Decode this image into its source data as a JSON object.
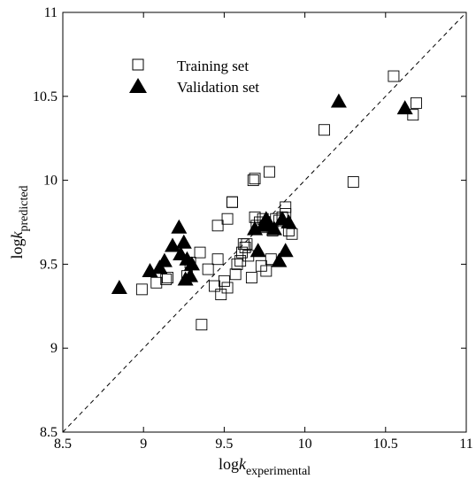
{
  "chart_data": {
    "type": "scatter",
    "xlabel": {
      "base": "log",
      "italic": "k",
      "subscript": "experimental"
    },
    "ylabel": {
      "base": "log",
      "italic": "k",
      "subscript": "predicted"
    },
    "xlim": [
      8.5,
      11
    ],
    "ylim": [
      8.5,
      11
    ],
    "xticks": [
      "8.5",
      "9",
      "9.5",
      "10",
      "10.5",
      "11"
    ],
    "yticks": [
      "8.5",
      "9",
      "9.5",
      "10",
      "10.5",
      "11"
    ],
    "xtick_values": [
      8.5,
      9,
      9.5,
      10,
      10.5,
      11
    ],
    "ytick_values": [
      8.5,
      9,
      9.5,
      10,
      10.5,
      11
    ],
    "grid": false,
    "legend_position": "top-left",
    "reference_line": {
      "style": "dashed",
      "from": [
        8.5,
        8.5
      ],
      "to": [
        11,
        11
      ]
    },
    "series": [
      {
        "name": "Training set",
        "marker": "open-square",
        "points": [
          [
            8.99,
            9.35
          ],
          [
            9.08,
            9.39
          ],
          [
            9.14,
            9.41
          ],
          [
            9.15,
            9.42
          ],
          [
            9.27,
            9.43
          ],
          [
            9.29,
            9.51
          ],
          [
            9.35,
            9.57
          ],
          [
            9.36,
            9.14
          ],
          [
            9.4,
            9.47
          ],
          [
            9.44,
            9.37
          ],
          [
            9.46,
            9.73
          ],
          [
            9.46,
            9.53
          ],
          [
            9.48,
            9.32
          ],
          [
            9.5,
            9.4
          ],
          [
            9.52,
            9.36
          ],
          [
            9.52,
            9.77
          ],
          [
            9.55,
            9.87
          ],
          [
            9.55,
            9.87
          ],
          [
            9.57,
            9.44
          ],
          [
            9.58,
            9.5
          ],
          [
            9.6,
            9.52
          ],
          [
            9.61,
            9.57
          ],
          [
            9.62,
            9.62
          ],
          [
            9.63,
            9.6
          ],
          [
            9.64,
            9.62
          ],
          [
            9.65,
            9.55
          ],
          [
            9.67,
            9.42
          ],
          [
            9.68,
            10.0
          ],
          [
            9.69,
            10.01
          ],
          [
            9.69,
            9.78
          ],
          [
            9.7,
            9.73
          ],
          [
            9.72,
            9.75
          ],
          [
            9.73,
            9.49
          ],
          [
            9.74,
            9.77
          ],
          [
            9.75,
            9.72
          ],
          [
            9.76,
            9.46
          ],
          [
            9.78,
            10.05
          ],
          [
            9.79,
            9.53
          ],
          [
            9.8,
            9.7
          ],
          [
            9.82,
            9.77
          ],
          [
            9.84,
            9.76
          ],
          [
            9.86,
            9.78
          ],
          [
            9.88,
            9.84
          ],
          [
            9.88,
            9.8
          ],
          [
            9.9,
            9.7
          ],
          [
            9.92,
            9.68
          ],
          [
            10.12,
            10.3
          ],
          [
            10.3,
            9.99
          ],
          [
            10.55,
            10.62
          ],
          [
            10.67,
            10.39
          ],
          [
            10.69,
            10.46
          ]
        ]
      },
      {
        "name": "Validation set",
        "marker": "filled-triangle",
        "points": [
          [
            8.85,
            9.36
          ],
          [
            9.04,
            9.46
          ],
          [
            9.1,
            9.48
          ],
          [
            9.13,
            9.52
          ],
          [
            9.18,
            9.61
          ],
          [
            9.22,
            9.72
          ],
          [
            9.23,
            9.56
          ],
          [
            9.25,
            9.63
          ],
          [
            9.26,
            9.41
          ],
          [
            9.27,
            9.53
          ],
          [
            9.29,
            9.43
          ],
          [
            9.3,
            9.5
          ],
          [
            9.69,
            9.71
          ],
          [
            9.71,
            9.58
          ],
          [
            9.74,
            9.73
          ],
          [
            9.76,
            9.77
          ],
          [
            9.78,
            9.74
          ],
          [
            9.81,
            9.71
          ],
          [
            9.84,
            9.52
          ],
          [
            9.86,
            9.77
          ],
          [
            9.88,
            9.58
          ],
          [
            9.9,
            9.75
          ],
          [
            10.21,
            10.47
          ],
          [
            10.62,
            10.43
          ]
        ]
      }
    ]
  }
}
